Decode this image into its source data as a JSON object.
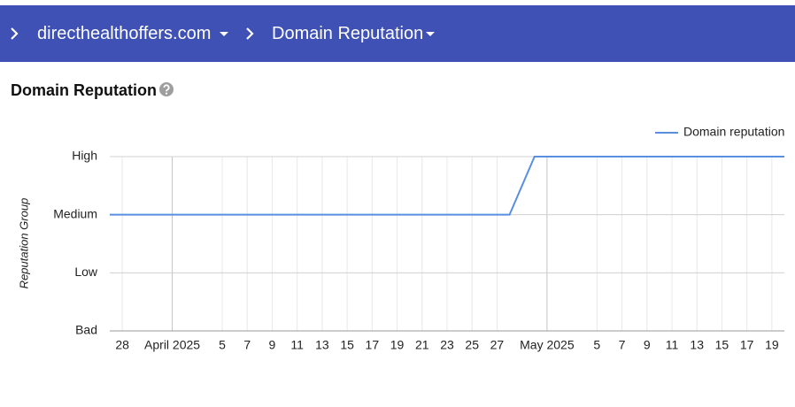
{
  "header": {
    "breadcrumbs": [
      "directhealthoffers.com",
      "Domain Reputation"
    ]
  },
  "page": {
    "title": "Domain Reputation"
  },
  "chart_data": {
    "type": "line",
    "ylabel": "Reputation Group",
    "x": [
      "2025-03-27",
      "2025-03-28",
      "2025-03-29",
      "2025-03-30",
      "2025-03-31",
      "2025-04-01",
      "2025-04-02",
      "2025-04-03",
      "2025-04-04",
      "2025-04-05",
      "2025-04-06",
      "2025-04-07",
      "2025-04-08",
      "2025-04-09",
      "2025-04-10",
      "2025-04-11",
      "2025-04-12",
      "2025-04-13",
      "2025-04-14",
      "2025-04-15",
      "2025-04-16",
      "2025-04-17",
      "2025-04-18",
      "2025-04-19",
      "2025-04-20",
      "2025-04-21",
      "2025-04-22",
      "2025-04-23",
      "2025-04-24",
      "2025-04-25",
      "2025-04-26",
      "2025-04-27",
      "2025-04-28",
      "2025-04-30",
      "2025-05-01",
      "2025-05-02",
      "2025-05-03",
      "2025-05-04",
      "2025-05-05",
      "2025-05-06",
      "2025-05-07",
      "2025-05-08",
      "2025-05-09",
      "2025-05-10",
      "2025-05-11",
      "2025-05-12",
      "2025-05-13",
      "2025-05-14",
      "2025-05-15",
      "2025-05-16",
      "2025-05-17",
      "2025-05-18",
      "2025-05-19",
      "2025-05-20"
    ],
    "series": [
      {
        "name": "Domain reputation",
        "color": "#5a8ee0",
        "values": [
          2,
          2,
          2,
          2,
          2,
          2,
          2,
          2,
          2,
          2,
          2,
          2,
          2,
          2,
          2,
          2,
          2,
          2,
          2,
          2,
          2,
          2,
          2,
          2,
          2,
          2,
          2,
          2,
          2,
          2,
          2,
          2,
          2,
          3,
          3,
          3,
          3,
          3,
          3,
          3,
          3,
          3,
          3,
          3,
          3,
          3,
          3,
          3,
          3,
          3,
          3,
          3,
          3,
          3
        ]
      }
    ],
    "xlim": [
      "2025-03-27",
      "2025-05-20"
    ],
    "xticks": [
      {
        "value": "2025-03-28",
        "label": "28"
      },
      {
        "value": "2025-04-01",
        "label": "April 2025"
      },
      {
        "value": "2025-04-05",
        "label": "5"
      },
      {
        "value": "2025-04-07",
        "label": "7"
      },
      {
        "value": "2025-04-09",
        "label": "9"
      },
      {
        "value": "2025-04-11",
        "label": "11"
      },
      {
        "value": "2025-04-13",
        "label": "13"
      },
      {
        "value": "2025-04-15",
        "label": "15"
      },
      {
        "value": "2025-04-17",
        "label": "17"
      },
      {
        "value": "2025-04-19",
        "label": "19"
      },
      {
        "value": "2025-04-21",
        "label": "21"
      },
      {
        "value": "2025-04-23",
        "label": "23"
      },
      {
        "value": "2025-04-25",
        "label": "25"
      },
      {
        "value": "2025-04-27",
        "label": "27"
      },
      {
        "value": "2025-05-01",
        "label": "May 2025"
      },
      {
        "value": "2025-05-05",
        "label": "5"
      },
      {
        "value": "2025-05-07",
        "label": "7"
      },
      {
        "value": "2025-05-09",
        "label": "9"
      },
      {
        "value": "2025-05-11",
        "label": "11"
      },
      {
        "value": "2025-05-13",
        "label": "13"
      },
      {
        "value": "2025-05-15",
        "label": "15"
      },
      {
        "value": "2025-05-17",
        "label": "17"
      },
      {
        "value": "2025-05-19",
        "label": "19"
      }
    ],
    "ylim": [
      0,
      3
    ],
    "yticks": [
      {
        "value": 0,
        "label": "Bad"
      },
      {
        "value": 1,
        "label": "Low"
      },
      {
        "value": 2,
        "label": "Medium"
      },
      {
        "value": 3,
        "label": "High"
      }
    ],
    "grid": true,
    "legend": "top-right"
  }
}
